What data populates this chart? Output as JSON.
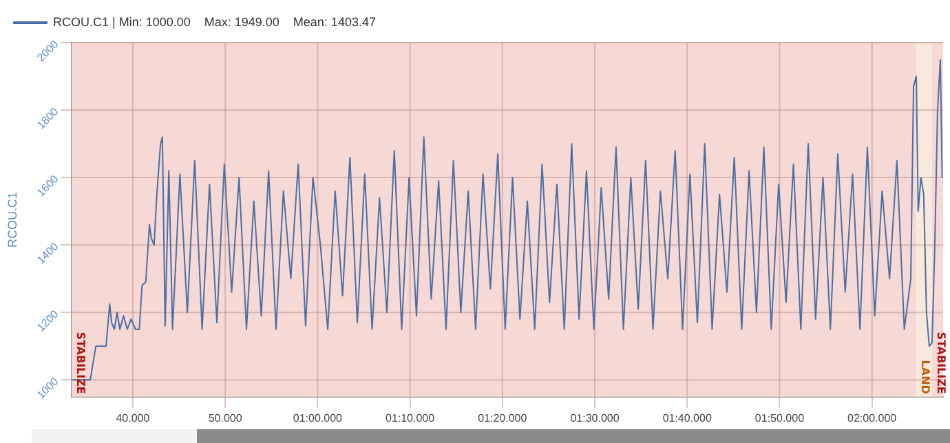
{
  "chart_data": {
    "type": "line",
    "ylabel": "RCOU.C1",
    "xlim": [
      33.4,
      127.7
    ],
    "ylim": [
      950,
      2000
    ],
    "xticks": [
      {
        "value": 40,
        "label": "40.000"
      },
      {
        "value": 50,
        "label": "50.000"
      },
      {
        "value": 60,
        "label": "01:00.000"
      },
      {
        "value": 70,
        "label": "01:10.000"
      },
      {
        "value": 80,
        "label": "01:20.000"
      },
      {
        "value": 90,
        "label": "01:30.000"
      },
      {
        "value": 100,
        "label": "01:40.000"
      },
      {
        "value": 110,
        "label": "01:50.000"
      },
      {
        "value": 120,
        "label": "02:00.000"
      }
    ],
    "yticks": [
      1000,
      1200,
      1400,
      1600,
      1800,
      2000
    ],
    "grid": true,
    "legend": "top left",
    "marker": "none",
    "bands": [
      {
        "axis": "x",
        "from": 33.4,
        "to": 124.8,
        "label": "STABILIZE",
        "color": "#f6d9d5"
      },
      {
        "axis": "x",
        "from": 124.8,
        "to": 126.5,
        "label": "LAND",
        "color": "#f8e9dc"
      },
      {
        "axis": "x",
        "from": 126.5,
        "to": 127.7,
        "label": "STABILIZE",
        "color": "#f6d9d5"
      }
    ],
    "series": [
      {
        "name": "RCOU.C1 | Min: 1000.00    Max: 1949.00    Mean: 1403.47",
        "color": "#4a6fa5",
        "x": [
          33.4,
          35.4,
          36.0,
          37.1,
          37.5,
          37.7,
          38.0,
          38.3,
          38.6,
          39.0,
          39.4,
          39.8,
          40.3,
          40.7,
          41.0,
          41.4,
          41.8,
          42.0,
          42.3,
          42.6,
          43.0,
          43.2,
          43.5,
          43.9,
          44.3,
          45.1,
          45.9,
          46.7,
          47.5,
          48.3,
          49.1,
          49.9,
          50.7,
          51.5,
          52.3,
          53.1,
          53.9,
          54.7,
          55.5,
          56.3,
          57.1,
          57.9,
          58.7,
          59.5,
          60.3,
          61.1,
          61.9,
          62.7,
          63.5,
          64.3,
          65.1,
          65.9,
          66.7,
          67.5,
          68.3,
          69.1,
          69.9,
          70.7,
          71.5,
          72.3,
          73.1,
          73.9,
          74.7,
          75.5,
          76.3,
          77.1,
          77.9,
          78.7,
          79.5,
          80.3,
          81.1,
          81.9,
          82.7,
          83.5,
          84.3,
          85.1,
          85.9,
          86.7,
          87.5,
          88.3,
          89.1,
          89.9,
          90.7,
          91.5,
          92.3,
          93.1,
          93.9,
          94.7,
          95.5,
          96.3,
          97.1,
          97.9,
          98.7,
          99.5,
          100.3,
          101.1,
          101.9,
          102.7,
          103.5,
          104.3,
          105.1,
          105.9,
          106.7,
          107.5,
          108.3,
          109.1,
          109.9,
          110.7,
          111.5,
          112.3,
          113.1,
          113.9,
          114.7,
          115.5,
          116.3,
          117.1,
          117.9,
          118.7,
          119.5,
          120.3,
          121.1,
          121.9,
          122.7,
          123.5,
          124.2,
          124.5,
          124.8,
          125.0,
          125.3,
          125.6,
          125.9,
          126.2,
          126.5,
          126.8,
          127.1,
          127.4,
          127.6
        ],
        "values": [
          1000,
          1000,
          1100,
          1100,
          1225,
          1170,
          1150,
          1200,
          1150,
          1190,
          1150,
          1180,
          1150,
          1150,
          1280,
          1290,
          1460,
          1420,
          1400,
          1550,
          1700,
          1720,
          1160,
          1620,
          1150,
          1610,
          1200,
          1650,
          1150,
          1580,
          1170,
          1640,
          1260,
          1600,
          1150,
          1530,
          1190,
          1620,
          1150,
          1560,
          1300,
          1640,
          1160,
          1600,
          1400,
          1150,
          1560,
          1250,
          1660,
          1170,
          1610,
          1150,
          1540,
          1200,
          1680,
          1150,
          1600,
          1190,
          1720,
          1240,
          1590,
          1150,
          1650,
          1200,
          1560,
          1150,
          1610,
          1270,
          1670,
          1150,
          1600,
          1180,
          1530,
          1150,
          1640,
          1230,
          1580,
          1150,
          1700,
          1180,
          1620,
          1150,
          1570,
          1240,
          1690,
          1150,
          1600,
          1210,
          1650,
          1150,
          1560,
          1300,
          1680,
          1150,
          1610,
          1170,
          1700,
          1150,
          1550,
          1260,
          1660,
          1150,
          1620,
          1200,
          1690,
          1150,
          1580,
          1230,
          1640,
          1150,
          1700,
          1180,
          1600,
          1150,
          1670,
          1260,
          1610,
          1150,
          1690,
          1190,
          1560,
          1300,
          1650,
          1150,
          1300,
          1870,
          1900,
          1500,
          1600,
          1550,
          1200,
          1100,
          1110,
          1400,
          1800,
          1949,
          1600
        ]
      }
    ]
  }
}
